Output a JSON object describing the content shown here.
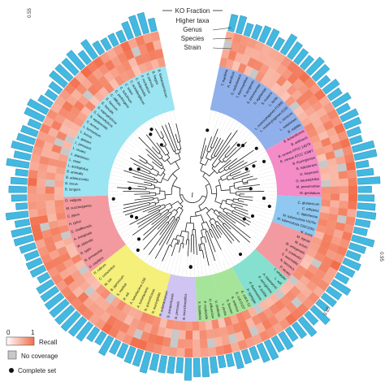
{
  "rings": {
    "ko_fraction": "KO Fraction",
    "higher_taxa": "Higher taxa",
    "genus": "Genus",
    "species": "Species",
    "strain": "Strain"
  },
  "ticks": {
    "top": "0.55",
    "right": "0.95",
    "bottom_right": "0.85"
  },
  "legend": {
    "scale_min": "0",
    "scale_max": "1",
    "recall": "Recall",
    "no_coverage": "No coverage",
    "complete_set": "Complete set"
  },
  "colors": {
    "bar": "#43b8e0",
    "bar_stroke": "#1e7fa8",
    "recall_low": "#ffffff",
    "recall_high": "#f26d4a",
    "no_coverage": "#c8c8c8",
    "tree": "#222222"
  },
  "clades": [
    {
      "color": "#9be4f2"
    },
    {
      "color": "#f29aa0"
    },
    {
      "color": "#f4f07a"
    },
    {
      "color": "#cfc4f2"
    },
    {
      "color": "#f48cc8"
    },
    {
      "color": "#a6e49a"
    },
    {
      "color": "#8fc8f0"
    },
    {
      "color": "#86e0cf"
    },
    {
      "color": "#f28ad8"
    },
    {
      "color": "#8fb0ea"
    },
    {
      "color": "#a6e49a"
    }
  ],
  "taxa": {
    "left_upper": [
      "B. longum",
      "B. breve",
      "B. adolescentis",
      "B. animalis",
      "L. acidophilus",
      "L. casei",
      "L. plantarum",
      "L. reuteri",
      "L. johnsonii",
      "L. gasseri",
      "L. brevis",
      "L. fermentum",
      "S. aureus",
      "S. epidermidis",
      "S. haemolyticus",
      "S. saprophyticus",
      "E. faecalis",
      "E. faecium",
      "C. difficile",
      "C. perfringens",
      "C. botulinum",
      "C. tetani",
      "C. acetobutylicum",
      "C. beijerinckii",
      "F. nucleatum",
      "V. parvula",
      "B. fragilis",
      "B. thetaiotaomicron"
    ],
    "left_lower": [
      "B. bronchiseptica",
      "B. pertussis",
      "B. parapertussis",
      "R. solanacearum",
      "N. meningitidis",
      "N. gonorrhoeae",
      "A. tumefaciens",
      "A. tumefaciens C58",
      "R. etli",
      "S. meliloti",
      "B. japonicum",
      "M. loti",
      "C. crescentus",
      "R. rubrum",
      "G. oxydans",
      "R. prowazekii",
      "R. typhi",
      "W. pipientis",
      "A. marginale",
      "E. chaffeensis",
      "H. pylori",
      "C. jejuni",
      "W. succinogenes",
      "D. vulgaris"
    ],
    "right_upper": [
      "T. maritima",
      "A. aeolicus",
      "D. radiodurans",
      "T. thermophilus",
      "S. pyogenes",
      "S. pneumoniae",
      "S. agalactiae",
      "S. mutans",
      "L. lactis",
      "L. monocytogenes F2365",
      "L. monocytogenes EGD",
      "L. innocua",
      "L. welshimeri",
      "B. subtilis",
      "B. licheniformis",
      "B. anthracis",
      "B. cereus ATCC 14579",
      "B. cereus ATCC 10987",
      "B. thuringiensis",
      "B. halodurans",
      "O. iheyensis",
      "G. kaustophilus",
      "M. pneumoniae",
      "M. genitalium"
    ],
    "right_lower": [
      "C. glutamicum",
      "C. efficiens",
      "C. diphtheriae",
      "M. tuberculosis H37Rv",
      "M. tuberculosis CDC1551",
      "M. bovis",
      "M. leprae",
      "M. avium",
      "M. smegmatis",
      "S. coelicolor",
      "S. avermitilis",
      "N. farcinica",
      "P. acnes",
      "T. whipplei",
      "L. xyli",
      "A. baumannii",
      "P. aeruginosa",
      "P. putida",
      "P. fluorescens",
      "P. syringae",
      "E. coli K-12",
      "E. coli O157",
      "S. enterica",
      "S. flexneri",
      "Y. pestis",
      "V. cholerae",
      "H. influenzae",
      "P. multocida",
      "X. fastidiosa"
    ]
  }
}
